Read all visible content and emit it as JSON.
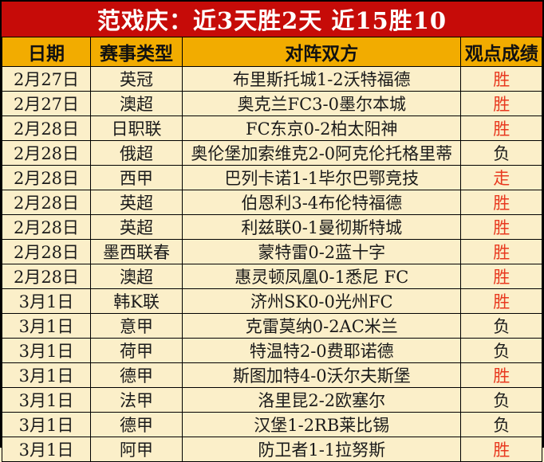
{
  "title": "范戏庆：近3天胜2天  近15胜10",
  "colors": {
    "banner_bg": "#c60b08",
    "banner_text": "#ffffff",
    "header_bg": "#f2ac00",
    "row_bg": "#fbefc9",
    "win_red": "#e8391f",
    "lose_black": "#1a1a1a"
  },
  "table": {
    "headers": [
      "日期",
      "赛事类型",
      "对阵双方",
      "观点成绩"
    ],
    "rows": [
      {
        "date": "2月27日",
        "league": "英冠",
        "match": "布里斯托城1-2沃特福德",
        "result": "胜",
        "result_color": "#e8391f"
      },
      {
        "date": "2月27日",
        "league": "澳超",
        "match": "奥克兰FC3-0墨尔本城",
        "result": "胜",
        "result_color": "#e8391f"
      },
      {
        "date": "2月28日",
        "league": "日职联",
        "match": "FC东京0-2柏太阳神",
        "result": "胜",
        "result_color": "#e8391f"
      },
      {
        "date": "2月28日",
        "league": "俄超",
        "match": "奥伦堡加索维克2-0阿克伦托格里蒂",
        "result": "负",
        "result_color": "#1a1a1a"
      },
      {
        "date": "2月28日",
        "league": "西甲",
        "match": "巴列卡诺1-1毕尔巴鄂竞技",
        "result": "走",
        "result_color": "#e8391f"
      },
      {
        "date": "2月28日",
        "league": "英超",
        "match": "伯恩利3-4布伦特福德",
        "result": "胜",
        "result_color": "#e8391f"
      },
      {
        "date": "2月28日",
        "league": "英超",
        "match": "利兹联0-1曼彻斯特城",
        "result": "胜",
        "result_color": "#e8391f"
      },
      {
        "date": "2月28日",
        "league": "墨西联春",
        "match": "蒙特雷0-2蓝十字",
        "result": "胜",
        "result_color": "#e8391f"
      },
      {
        "date": "2月28日",
        "league": "澳超",
        "match": "惠灵顿凤凰0-1悉尼 FC",
        "result": "胜",
        "result_color": "#e8391f"
      },
      {
        "date": "3月1日",
        "league": "韩K联",
        "match": "济州SK0-0光州FC",
        "result": "胜",
        "result_color": "#e8391f"
      },
      {
        "date": "3月1日",
        "league": "意甲",
        "match": "克雷莫纳0-2AC米兰",
        "result": "负",
        "result_color": "#1a1a1a"
      },
      {
        "date": "3月1日",
        "league": "荷甲",
        "match": "特温特2-0费耶诺德",
        "result": "负",
        "result_color": "#1a1a1a"
      },
      {
        "date": "3月1日",
        "league": "德甲",
        "match": "斯图加特4-0沃尔夫斯堡",
        "result": "胜",
        "result_color": "#e8391f"
      },
      {
        "date": "3月1日",
        "league": "法甲",
        "match": "洛里昆2-2欧塞尔",
        "result": "负",
        "result_color": "#1a1a1a"
      },
      {
        "date": "3月1日",
        "league": "德甲",
        "match": "汉堡1-2RB莱比锡",
        "result": "负",
        "result_color": "#1a1a1a"
      },
      {
        "date": "3月1日",
        "league": "阿甲",
        "match": "防卫者1-1拉努斯",
        "result": "胜",
        "result_color": "#e8391f"
      }
    ]
  }
}
